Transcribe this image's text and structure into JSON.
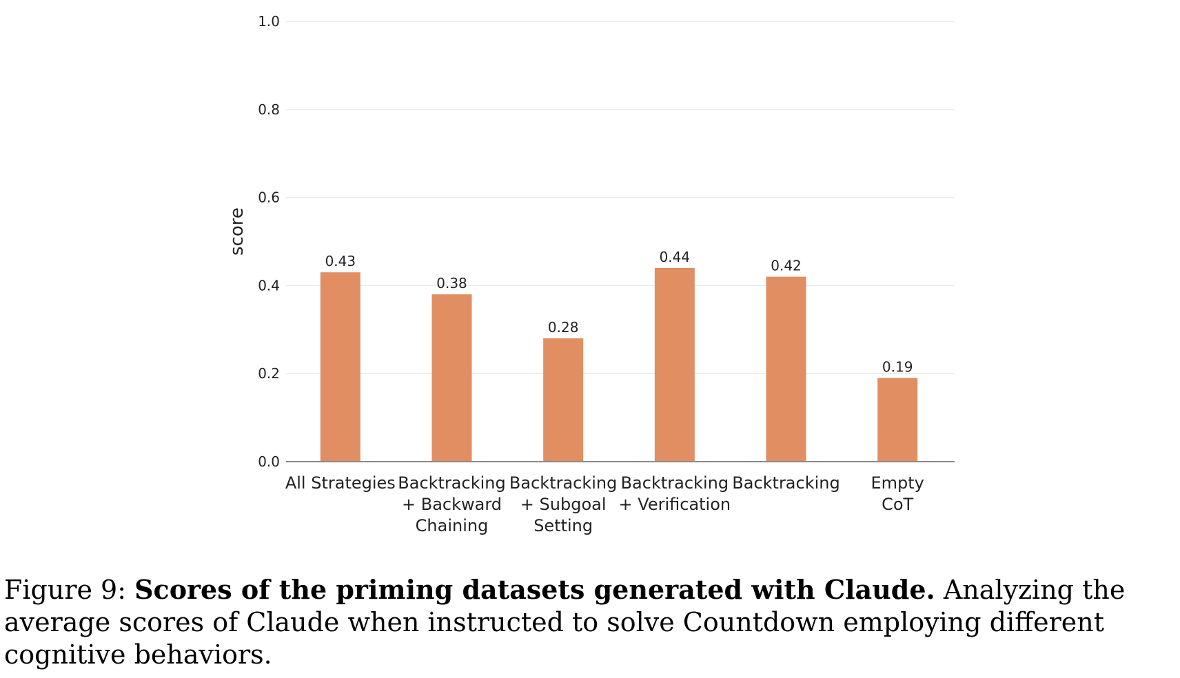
{
  "chart_data": {
    "type": "bar",
    "categories": [
      [
        "All Strategies"
      ],
      [
        "Backtracking",
        "+ Backward",
        "Chaining"
      ],
      [
        "Backtracking",
        "+ Subgoal",
        "Setting"
      ],
      [
        "Backtracking",
        "+ Verification"
      ],
      [
        "Backtracking"
      ],
      [
        "Empty",
        "CoT"
      ]
    ],
    "values": [
      0.43,
      0.38,
      0.28,
      0.44,
      0.42,
      0.19
    ],
    "value_labels": [
      "0.43",
      "0.38",
      "0.28",
      "0.44",
      "0.42",
      "0.19"
    ],
    "yticks": [
      "0.0",
      "0.2",
      "0.4",
      "0.6",
      "0.8",
      "1.0"
    ],
    "ylim": [
      0,
      1.0
    ],
    "ylabel": "score",
    "xlabel": "",
    "grid": true,
    "bar_color": "#e08e62"
  },
  "caption": {
    "prefix": "Figure 9: ",
    "bold": "Scores of the priming datasets generated with Claude.",
    "rest": " Analyzing the average scores of Claude when instructed to solve Countdown employing different cognitive behaviors."
  }
}
